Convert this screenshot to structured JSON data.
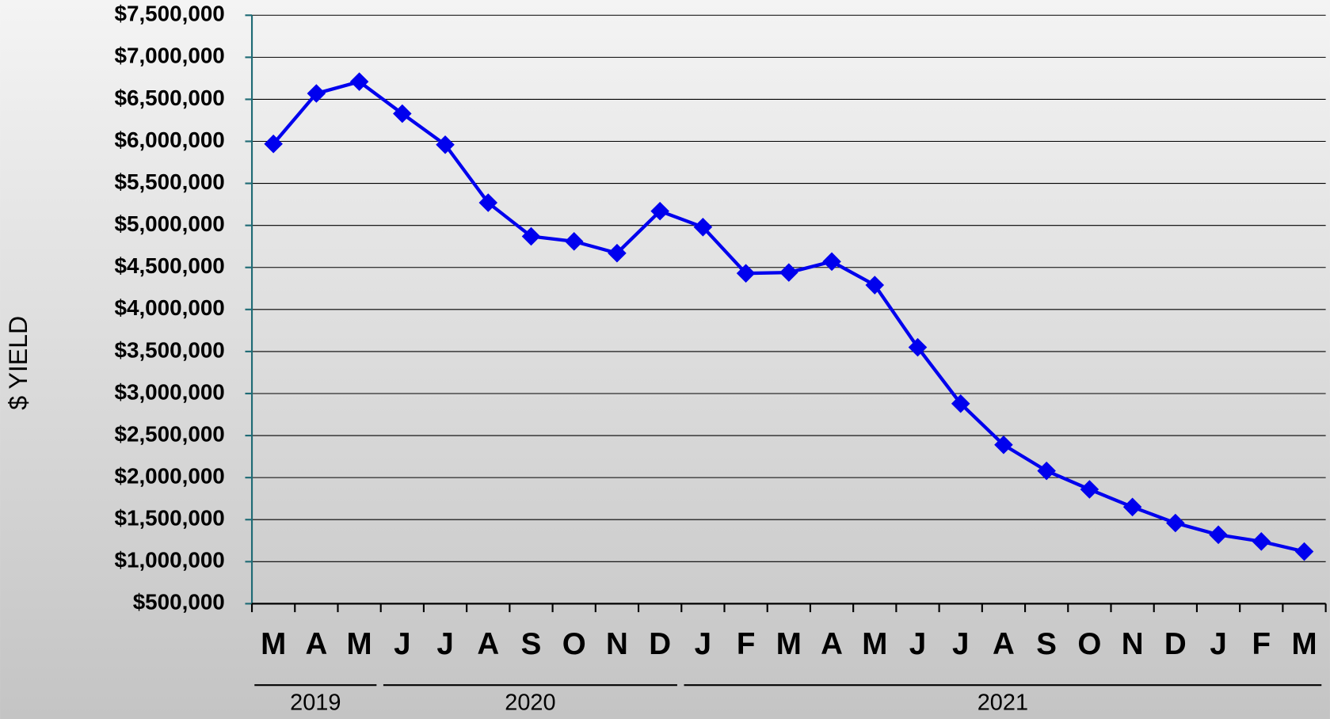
{
  "chart_data": {
    "type": "line",
    "y_label": "$ YIELD",
    "categories": [
      "M",
      "A",
      "M",
      "J",
      "J",
      "A",
      "S",
      "O",
      "N",
      "D",
      "J",
      "F",
      "M",
      "A",
      "M",
      "J",
      "J",
      "A",
      "S",
      "O",
      "N",
      "D",
      "J",
      "F",
      "M"
    ],
    "x_groups": [
      "2019",
      "2020",
      "2021"
    ],
    "series": [
      {
        "name": "Yield",
        "color": "#0000ee",
        "values": [
          5970000,
          6570000,
          6710000,
          6330000,
          5960000,
          5270000,
          4870000,
          4810000,
          4670000,
          5170000,
          4980000,
          4430000,
          4440000,
          4570000,
          4290000,
          3550000,
          2880000,
          2390000,
          2080000,
          1860000,
          1650000,
          1460000,
          1320000,
          1240000,
          1120000
        ]
      }
    ],
    "ylim": [
      500000,
      7500000
    ],
    "yticks": [
      {
        "value": 500000,
        "label": "$500,000"
      },
      {
        "value": 1000000,
        "label": "$1,000,000"
      },
      {
        "value": 1500000,
        "label": "$1,500,000"
      },
      {
        "value": 2000000,
        "label": "$2,000,000"
      },
      {
        "value": 2500000,
        "label": "$2,500,000"
      },
      {
        "value": 3000000,
        "label": "$3,000,000"
      },
      {
        "value": 3500000,
        "label": "$3,500,000"
      },
      {
        "value": 4000000,
        "label": "$4,000,000"
      },
      {
        "value": 4500000,
        "label": "$4,500,000"
      },
      {
        "value": 5000000,
        "label": "$5,000,000"
      },
      {
        "value": 5500000,
        "label": "$5,500,000"
      },
      {
        "value": 6000000,
        "label": "$6,000,000"
      },
      {
        "value": 6500000,
        "label": "$6,500,000"
      },
      {
        "value": 7000000,
        "label": "$7,000,000"
      },
      {
        "value": 7500000,
        "label": "$7,500,000"
      }
    ],
    "grid": true
  }
}
